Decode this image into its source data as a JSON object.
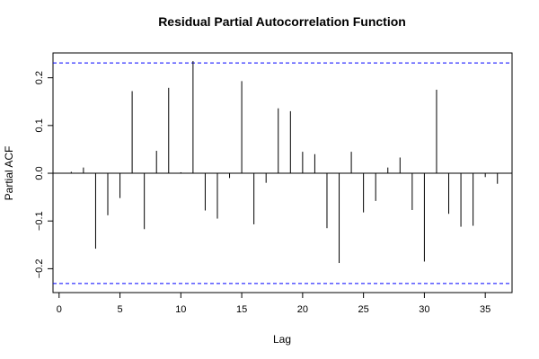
{
  "chart_data": {
    "type": "bar",
    "title": "Residual Partial Autocorrelation Function",
    "xlabel": "Lag",
    "ylabel": "Partial ACF",
    "xlim": [
      -0.5,
      37.2
    ],
    "ylim": [
      -0.25,
      0.252
    ],
    "x_ticks": [
      0,
      5,
      10,
      15,
      20,
      25,
      30,
      35
    ],
    "y_ticks": [
      -0.2,
      -0.1,
      0.0,
      0.1,
      0.2
    ],
    "y_tick_labels": [
      "−0.2",
      "−0.1",
      "0.0",
      "0.1",
      "0.2"
    ],
    "confidence_bounds": [
      0.231,
      -0.231
    ],
    "confidence_color": "#0000ff",
    "grid": false,
    "series": [
      {
        "x": [
          1,
          2,
          3,
          4,
          5,
          6,
          7,
          8,
          9,
          10,
          11,
          12,
          13,
          14,
          15,
          16,
          17,
          18,
          19,
          20,
          21,
          22,
          23,
          24,
          25,
          26,
          27,
          28,
          29,
          30,
          31,
          32,
          33,
          34,
          35,
          36
        ],
        "values": [
          0.003,
          0.012,
          -0.158,
          -0.088,
          -0.052,
          0.172,
          -0.117,
          0.047,
          0.179,
          0.002,
          0.235,
          -0.078,
          -0.095,
          -0.01,
          0.193,
          -0.107,
          -0.02,
          0.136,
          0.13,
          0.045,
          0.04,
          -0.115,
          -0.188,
          0.045,
          -0.082,
          -0.058,
          0.012,
          0.033,
          -0.077,
          -0.185,
          0.175,
          -0.085,
          -0.112,
          -0.11,
          -0.008,
          -0.022
        ]
      }
    ]
  }
}
